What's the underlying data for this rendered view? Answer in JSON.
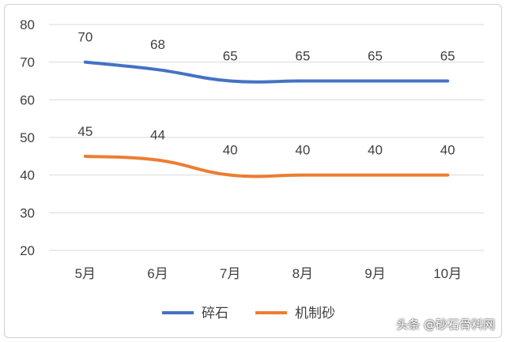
{
  "chart_data": {
    "type": "line",
    "categories": [
      "5月",
      "6月",
      "7月",
      "8月",
      "9月",
      "10月"
    ],
    "series": [
      {
        "name": "碎石",
        "color": "#4472c4",
        "values": [
          70,
          68,
          65,
          65,
          65,
          65
        ]
      },
      {
        "name": "机制砂",
        "color": "#ed7d31",
        "values": [
          45,
          44,
          40,
          40,
          40,
          40
        ]
      }
    ],
    "ylim": [
      20,
      80
    ],
    "yticks": [
      20,
      30,
      40,
      50,
      60,
      70,
      80
    ],
    "grid": true,
    "smooth": true,
    "legend": "bottom"
  },
  "watermark": "头条 @砂石骨料网"
}
